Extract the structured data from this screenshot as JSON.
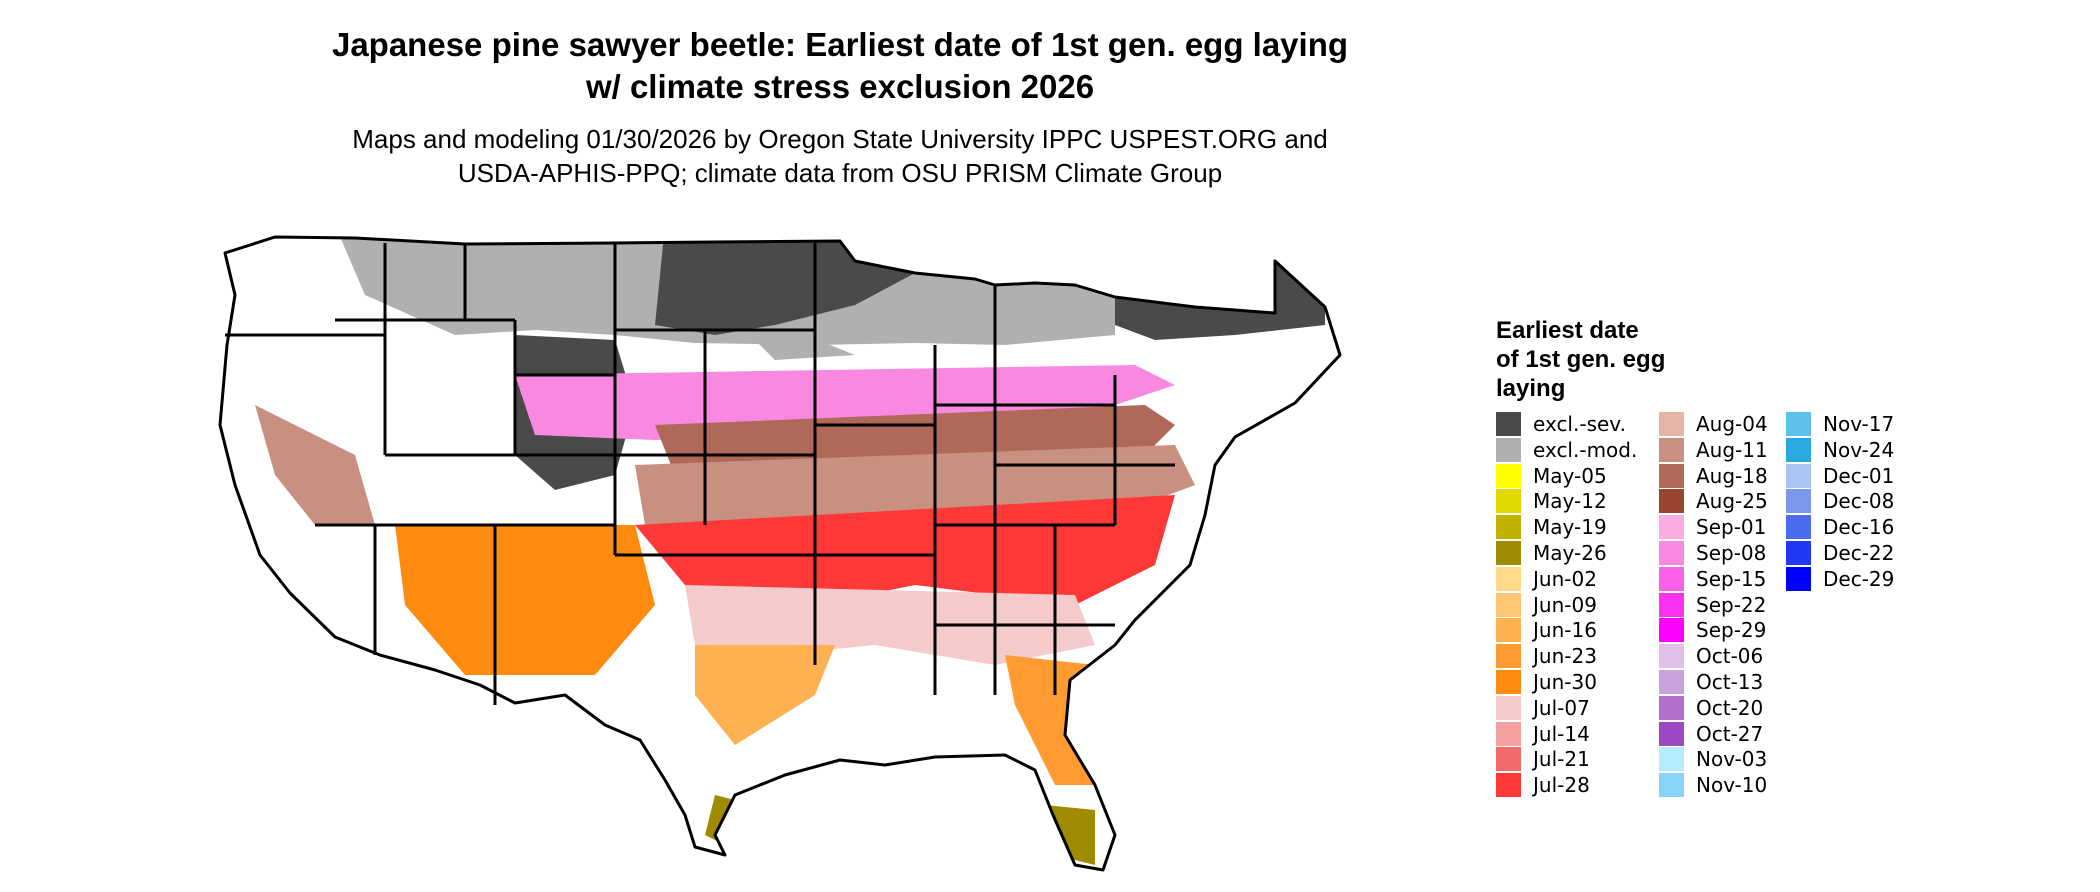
{
  "title_lines": [
    "Japanese pine sawyer beetle: Earliest date of 1st gen. egg laying",
    "w/ climate stress exclusion 2026"
  ],
  "subtitle_lines": [
    "Maps and modeling 01/30/2026 by Oregon State University IPPC USPEST.ORG and",
    "USDA-APHIS-PPQ; climate data from OSU PRISM Climate Group"
  ],
  "legend": {
    "title_lines": [
      "Earliest date",
      "of 1st gen. egg",
      "laying"
    ],
    "items": [
      {
        "label": "excl.-sev.",
        "color": "#4a4a4a"
      },
      {
        "label": "excl.-mod.",
        "color": "#b0b0b0"
      },
      {
        "label": "May-05",
        "color": "#ffff00"
      },
      {
        "label": "May-12",
        "color": "#e0d800"
      },
      {
        "label": "May-19",
        "color": "#c2b200"
      },
      {
        "label": "May-26",
        "color": "#a08a00"
      },
      {
        "label": "Jun-02",
        "color": "#ffd88a"
      },
      {
        "label": "Jun-09",
        "color": "#ffc570"
      },
      {
        "label": "Jun-16",
        "color": "#ffb050"
      },
      {
        "label": "Jun-23",
        "color": "#ff9b30"
      },
      {
        "label": "Jun-30",
        "color": "#ff8a10"
      },
      {
        "label": "Jul-07",
        "color": "#f4caca"
      },
      {
        "label": "Jul-14",
        "color": "#f5a0a0"
      },
      {
        "label": "Jul-21",
        "color": "#f56a6a"
      },
      {
        "label": "Jul-28",
        "color": "#ff3838"
      },
      {
        "label": "Aug-04",
        "color": "#e6b5a8"
      },
      {
        "label": "Aug-11",
        "color": "#c89080"
      },
      {
        "label": "Aug-18",
        "color": "#b06858"
      },
      {
        "label": "Aug-25",
        "color": "#9a4530"
      },
      {
        "label": "Sep-01",
        "color": "#f8aee0"
      },
      {
        "label": "Sep-08",
        "color": "#f888e0"
      },
      {
        "label": "Sep-15",
        "color": "#f860e8"
      },
      {
        "label": "Sep-22",
        "color": "#fc30f0"
      },
      {
        "label": "Sep-29",
        "color": "#ff00ff"
      },
      {
        "label": "Oct-06",
        "color": "#e0c0e8"
      },
      {
        "label": "Oct-13",
        "color": "#c8a0dc"
      },
      {
        "label": "Oct-20",
        "color": "#b070cc"
      },
      {
        "label": "Oct-27",
        "color": "#9c48c0"
      },
      {
        "label": "Nov-03",
        "color": "#b4ecff"
      },
      {
        "label": "Nov-10",
        "color": "#88d4f8"
      },
      {
        "label": "Nov-17",
        "color": "#5cc0ec"
      },
      {
        "label": "Nov-24",
        "color": "#2ca8e0"
      },
      {
        "label": "Dec-01",
        "color": "#a8c4f0"
      },
      {
        "label": "Dec-08",
        "color": "#7c98ec"
      },
      {
        "label": "Dec-16",
        "color": "#4c6cf0"
      },
      {
        "label": "Dec-22",
        "color": "#2038f4"
      },
      {
        "label": "Dec-29",
        "color": "#0000ff"
      }
    ]
  }
}
